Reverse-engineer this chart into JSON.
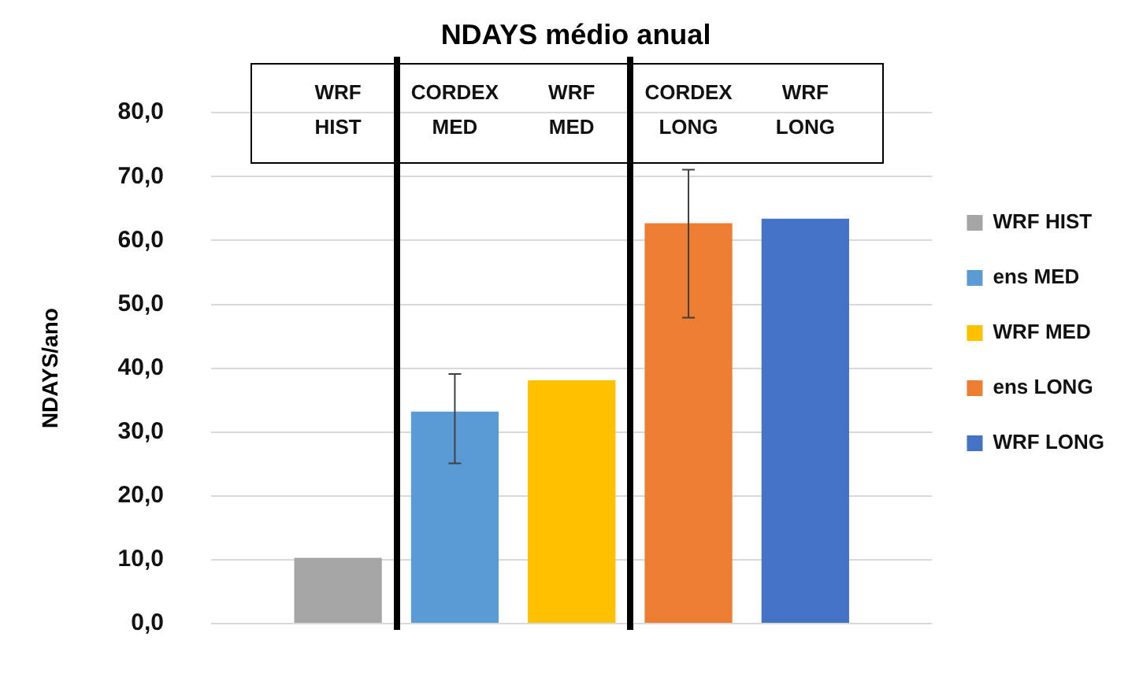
{
  "chart_data": {
    "type": "bar",
    "title": "NDAYS médio anual",
    "ylabel": "NDAYS/ano",
    "categories": [
      null
    ],
    "series": [
      {
        "name": "WRF HIST",
        "color": "#a5a5a5",
        "values": [
          10.3
        ]
      },
      {
        "name": "ens MED",
        "color": "#5b9bd5",
        "values": [
          33.2
        ],
        "errors": [
          [
            25.1,
            39.1
          ]
        ]
      },
      {
        "name": "WRF MED",
        "color": "#ffc000",
        "values": [
          38.1
        ]
      },
      {
        "name": "ens LONG",
        "color": "#ed7d31",
        "values": [
          62.7
        ],
        "errors": [
          [
            47.9,
            71.1
          ]
        ]
      },
      {
        "name": "WRF LONG",
        "color": "#4472c4",
        "values": [
          63.4
        ]
      }
    ],
    "annotations": [
      "WRF HIST",
      "CORDEX MED",
      "WRF MED",
      "CORDEX LONG",
      "WRF LONG"
    ],
    "ylim": [
      0,
      80
    ],
    "yticks": [
      {
        "value": 0,
        "label": "0,0"
      },
      {
        "value": 10,
        "label": "10,0"
      },
      {
        "value": 20,
        "label": "20,0"
      },
      {
        "value": 30,
        "label": "30,0"
      },
      {
        "value": 40,
        "label": "40,0"
      },
      {
        "value": 50,
        "label": "50,0"
      },
      {
        "value": 60,
        "label": "60,0"
      },
      {
        "value": 70,
        "label": "70,0"
      },
      {
        "value": 80,
        "label": "80,0"
      }
    ],
    "grid": "y",
    "legend": "right"
  }
}
